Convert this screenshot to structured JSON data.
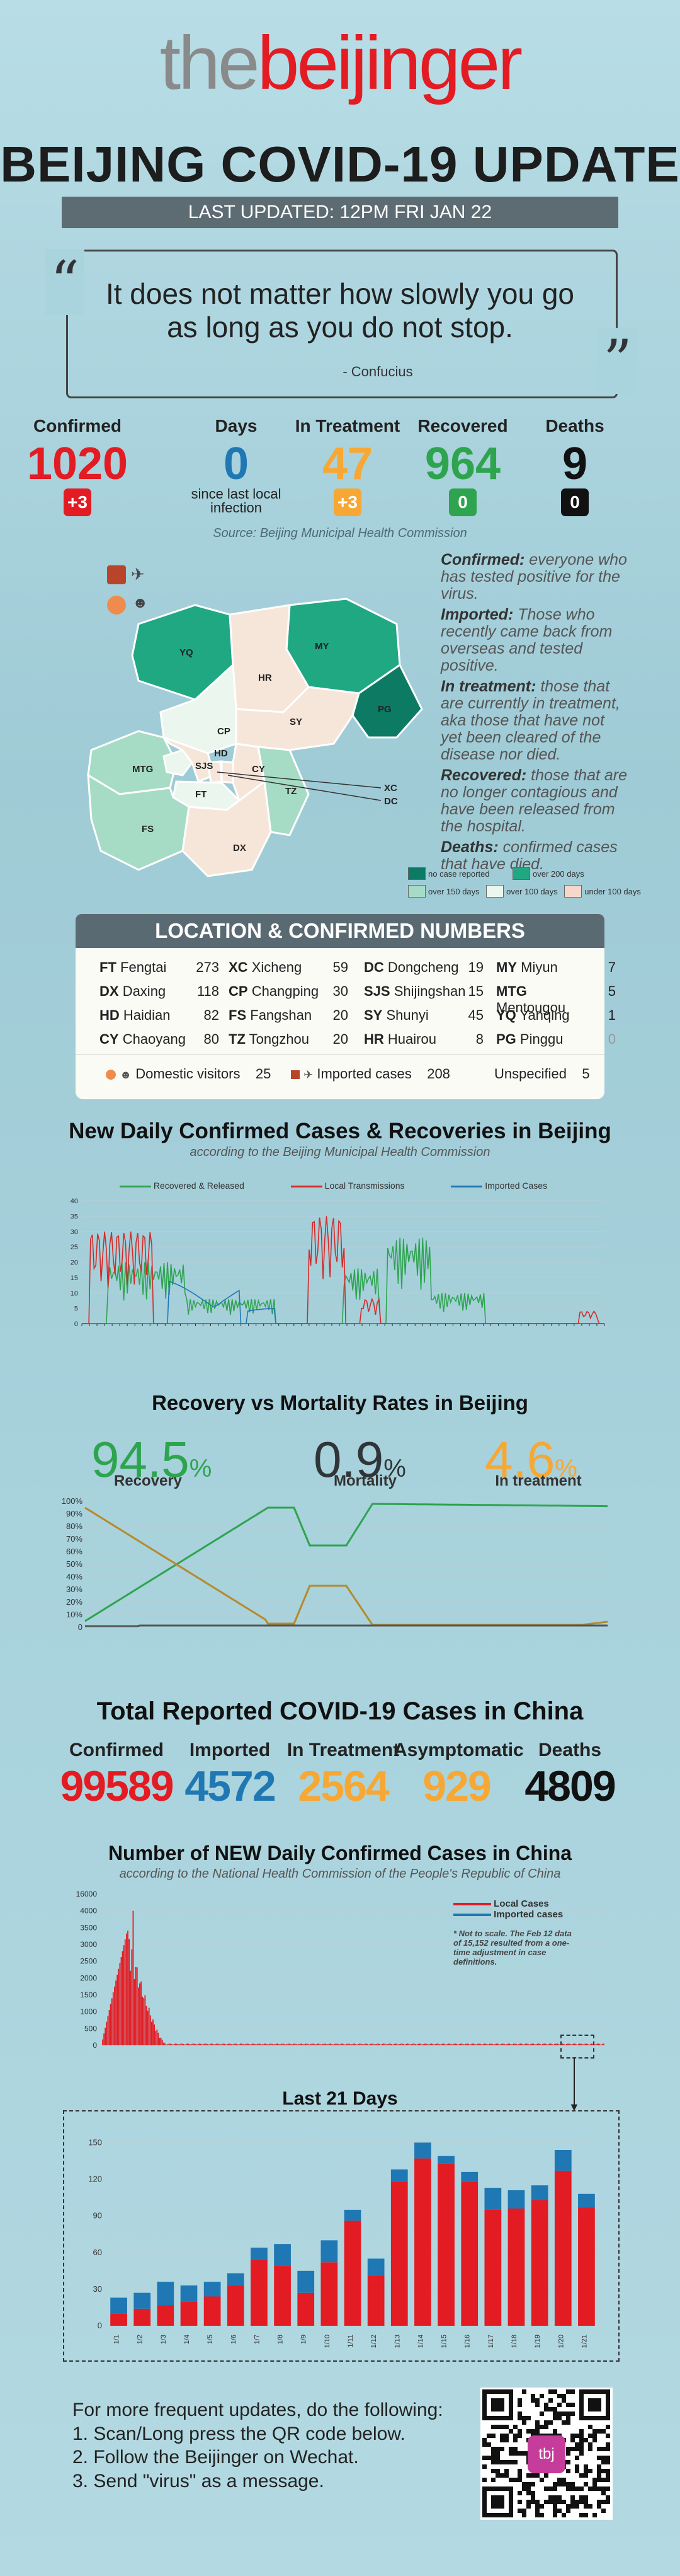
{
  "header": {
    "logo_the": "the",
    "logo_beijinger": "beijinger",
    "title": "BEIJING COVID-19 UPDATE",
    "last_updated": "LAST UPDATED:  12PM FRI JAN 22"
  },
  "quote": {
    "text": "It does not matter how slowly you go as long as you do not stop.",
    "author": "- Confucius"
  },
  "stats": {
    "confirmed": {
      "label": "Confirmed",
      "value": "1020",
      "badge": "+3",
      "color": "#e31b23"
    },
    "days": {
      "label": "Days",
      "value": "0",
      "sub": "since last local infection",
      "color": "#1f78b4"
    },
    "treatment": {
      "label": "In Treatment",
      "value": "47",
      "badge": "+3",
      "color": "#f7a733"
    },
    "recovered": {
      "label": "Recovered",
      "value": "964",
      "badge": "0",
      "color": "#2ea44f"
    },
    "deaths": {
      "label": "Deaths",
      "value": "9",
      "badge": "0",
      "color": "#111111"
    }
  },
  "source": "Source: Beijing Municipal Health Commission",
  "definitions": [
    {
      "term": "Confirmed:",
      "text": "everyone who has tested positive for the virus."
    },
    {
      "term": "Imported:",
      "text": "Those who recently came back from overseas and tested positive."
    },
    {
      "term": "In treatment:",
      "text": "those that are currently in treatment, aka those that have not yet been cleared of the disease nor died."
    },
    {
      "term": "Recovered:",
      "text": "those that are no longer contagious and have been released from the hospital."
    },
    {
      "term": "Deaths:",
      "text": "confirmed cases that have died."
    }
  ],
  "map": {
    "districts": [
      "YQ",
      "MY",
      "HR",
      "PG",
      "CP",
      "SY",
      "MTG",
      "SJS",
      "HD",
      "XC",
      "DC",
      "CY",
      "FT",
      "TZ",
      "FS",
      "DX"
    ],
    "legend": [
      {
        "label": "no case reported",
        "color": "#0d7a64"
      },
      {
        "label": "over 200 days",
        "color": "#20a883"
      },
      {
        "label": "over 150 days",
        "color": "#a6dcc5"
      },
      {
        "label": "over 100 days",
        "color": "#ebf6ee"
      },
      {
        "label": "under 100 days",
        "color": "#f5d8c9"
      }
    ]
  },
  "location": {
    "title": "LOCATION & CONFIRMED NUMBERS",
    "rows": [
      [
        {
          "code": "FT",
          "name": "Fengtai",
          "n": "273"
        },
        {
          "code": "XC",
          "name": "Xicheng",
          "n": "59"
        },
        {
          "code": "DC",
          "name": "Dongcheng",
          "n": "19"
        },
        {
          "code": "MY",
          "name": "Miyun",
          "n": "7"
        }
      ],
      [
        {
          "code": "DX",
          "name": "Daxing",
          "n": "118"
        },
        {
          "code": "CP",
          "name": "Changping",
          "n": "30"
        },
        {
          "code": "SJS",
          "name": "Shijingshan",
          "n": "15"
        },
        {
          "code": "MTG",
          "name": "Mentougou",
          "n": "5"
        }
      ],
      [
        {
          "code": "HD",
          "name": "Haidian",
          "n": "82"
        },
        {
          "code": "FS",
          "name": "Fangshan",
          "n": "20"
        },
        {
          "code": "SY",
          "name": "Shunyi",
          "n": "45"
        },
        {
          "code": "YQ",
          "name": "Yanqing",
          "n": "1"
        }
      ],
      [
        {
          "code": "CY",
          "name": "Chaoyang",
          "n": "80"
        },
        {
          "code": "TZ",
          "name": "Tongzhou",
          "n": "20"
        },
        {
          "code": "HR",
          "name": "Huairou",
          "n": "8"
        },
        {
          "code": "PG",
          "name": "Pinggu",
          "n": "0"
        }
      ]
    ],
    "domestic_label": "Domestic visitors",
    "domestic": "25",
    "imported_label": "Imported cases",
    "imported": "208",
    "unspecified_label": "Unspecified",
    "unspecified": "5"
  },
  "daily_chart": {
    "title": "New Daily Confirmed Cases & Recoveries in Beijing",
    "subtitle": "according to the Beijing Municipal Health Commission",
    "legend": [
      "Recovered & Released",
      "Local Transmissions",
      "Imported Cases"
    ]
  },
  "recovery_chart": {
    "title": "Recovery vs Mortality Rates in Beijing",
    "recovery_pct": "94.5",
    "recovery_label": "Recovery",
    "mortality_pct": "0.9",
    "mortality_label": "Mortality",
    "treatment_pct": "4.6",
    "treatment_label": "In treatment",
    "pct_sign": "%",
    "yticks": [
      "100%",
      "90%",
      "80%",
      "70%",
      "60%",
      "50%",
      "40%",
      "30%",
      "20%",
      "10%",
      "0"
    ]
  },
  "china": {
    "title": "Total Reported COVID-19 Cases in China",
    "items": [
      {
        "label": "Confirmed",
        "value": "99589",
        "color": "#e31b23"
      },
      {
        "label": "Imported",
        "value": "4572",
        "color": "#1f78b4"
      },
      {
        "label": "In Treatment",
        "value": "2564",
        "color": "#f7a733"
      },
      {
        "label": "Asymptomatic",
        "value": "929",
        "color": "#f7a733"
      },
      {
        "label": "Deaths",
        "value": "4809",
        "color": "#111111"
      }
    ]
  },
  "china_chart": {
    "title": "Number of NEW Daily Confirmed Cases in China",
    "subtitle": "according to the National Health Commission of the People's Republic of China",
    "legend_local": "Local Cases",
    "legend_imported": "Imported cases",
    "note": "* Not to scale. The Feb 12 data of 15,152 resulted from a one-time adjustment in case definitions.",
    "yticks": [
      "16000",
      "4000",
      "3500",
      "3000",
      "2500",
      "2000",
      "1500",
      "1000",
      "500",
      "0"
    ]
  },
  "chart_data": {
    "type": "bar",
    "title": "Last 21 Days",
    "ylim": [
      0,
      160
    ],
    "yticks": [
      "150",
      "120",
      "90",
      "60",
      "30",
      "0"
    ],
    "categories": [
      "1/1",
      "1/2",
      "1/3",
      "1/4",
      "1/5",
      "1/6",
      "1/7",
      "1/8",
      "1/9",
      "1/10",
      "1/11",
      "1/12",
      "1/13",
      "1/14",
      "1/15",
      "1/16",
      "1/17",
      "1/18",
      "1/19",
      "1/20",
      "1/21"
    ],
    "series": [
      {
        "name": "Local Cases",
        "values": [
          10,
          14,
          17,
          20,
          24,
          33,
          54,
          49,
          27,
          52,
          86,
          41,
          118,
          137,
          133,
          118,
          95,
          96,
          103,
          127,
          97
        ]
      },
      {
        "name": "Imported cases",
        "values": [
          13,
          13,
          19,
          13,
          12,
          10,
          10,
          18,
          18,
          18,
          9,
          14,
          10,
          13,
          6,
          8,
          18,
          15,
          12,
          17,
          11
        ]
      }
    ]
  },
  "footer": {
    "lines": [
      "For more frequent updates, do the following:",
      "1. Scan/Long press the QR code below.",
      "2. Follow the Beijinger on Wechat.",
      "3. Send \"virus\" as a message."
    ],
    "qr_label": "tbj"
  }
}
